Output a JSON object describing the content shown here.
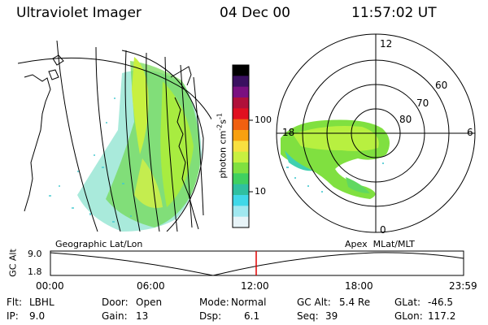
{
  "header": {
    "title": "Ultraviolet Imager",
    "date": "04 Dec 00",
    "time": "11:57:02 UT"
  },
  "colorbar": {
    "unit_label": "photon cm",
    "unit_exp1": "-2",
    "unit_mid": "s",
    "unit_exp2": "-1",
    "ticks": [
      "100",
      "10"
    ],
    "colors": [
      "#000000",
      "#3a1060",
      "#7a1080",
      "#b0103a",
      "#e01020",
      "#f06010",
      "#f8a010",
      "#f8e040",
      "#c8f040",
      "#80e040",
      "#40d060",
      "#30c0a0",
      "#40d8e8",
      "#a0e8f0",
      "#e8f4f8"
    ]
  },
  "left_panel": {
    "caption": "Geographic Lat/Lon"
  },
  "right_panel": {
    "caption": "Apex  MLat/MLT",
    "mlt_labels": [
      "12",
      "18",
      "6",
      "0"
    ],
    "lat_labels": [
      "60",
      "70",
      "80"
    ]
  },
  "altitude_plot": {
    "ylabel": "GC Alt",
    "y_ticks": [
      "9.0",
      "1.8"
    ],
    "x_ticks": [
      "00:00",
      "06:00",
      "12:00",
      "18:00",
      "23:59"
    ],
    "marker_color": "#e00000"
  },
  "info": {
    "row1": [
      {
        "key": "Flt:",
        "val": "LBHL"
      },
      {
        "key": "Door:",
        "val": "Open"
      },
      {
        "key": "Mode:",
        "val": "Normal"
      },
      {
        "key": "GC Alt:",
        "val": "5.4 Re"
      },
      {
        "key": "GLat:",
        "val": "-46.5"
      }
    ],
    "row2": [
      {
        "key": "IP:",
        "val": "9.0"
      },
      {
        "key": "Gain:",
        "val": "13"
      },
      {
        "key": "Dsp:",
        "val": "6.1"
      },
      {
        "key": "Seq:",
        "val": "39"
      },
      {
        "key": "GLon:",
        "val": "117.2"
      }
    ]
  }
}
